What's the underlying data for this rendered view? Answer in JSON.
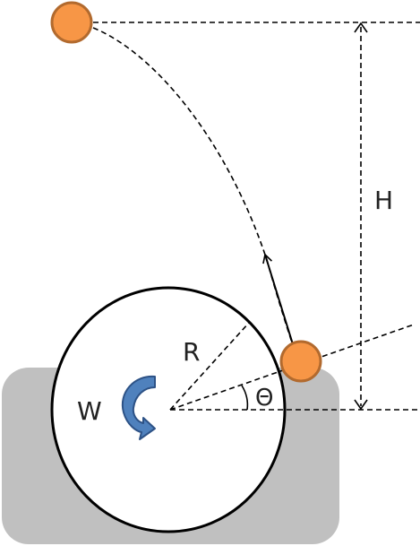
{
  "labels": {
    "height": "H",
    "radius": "R",
    "angle": "Θ",
    "angular_velocity": "W"
  },
  "colors": {
    "ball_fill": "#f79646",
    "ball_stroke": "#b26a2e",
    "base_fill": "#c0c0c0",
    "wheel_fill": "#ffffff",
    "wheel_stroke": "#000000",
    "rotation_arrow_fill": "#4f81bd",
    "rotation_arrow_stroke": "#2d5286"
  },
  "icons": {
    "rotation": "curved-arrow-counterclockwise"
  }
}
